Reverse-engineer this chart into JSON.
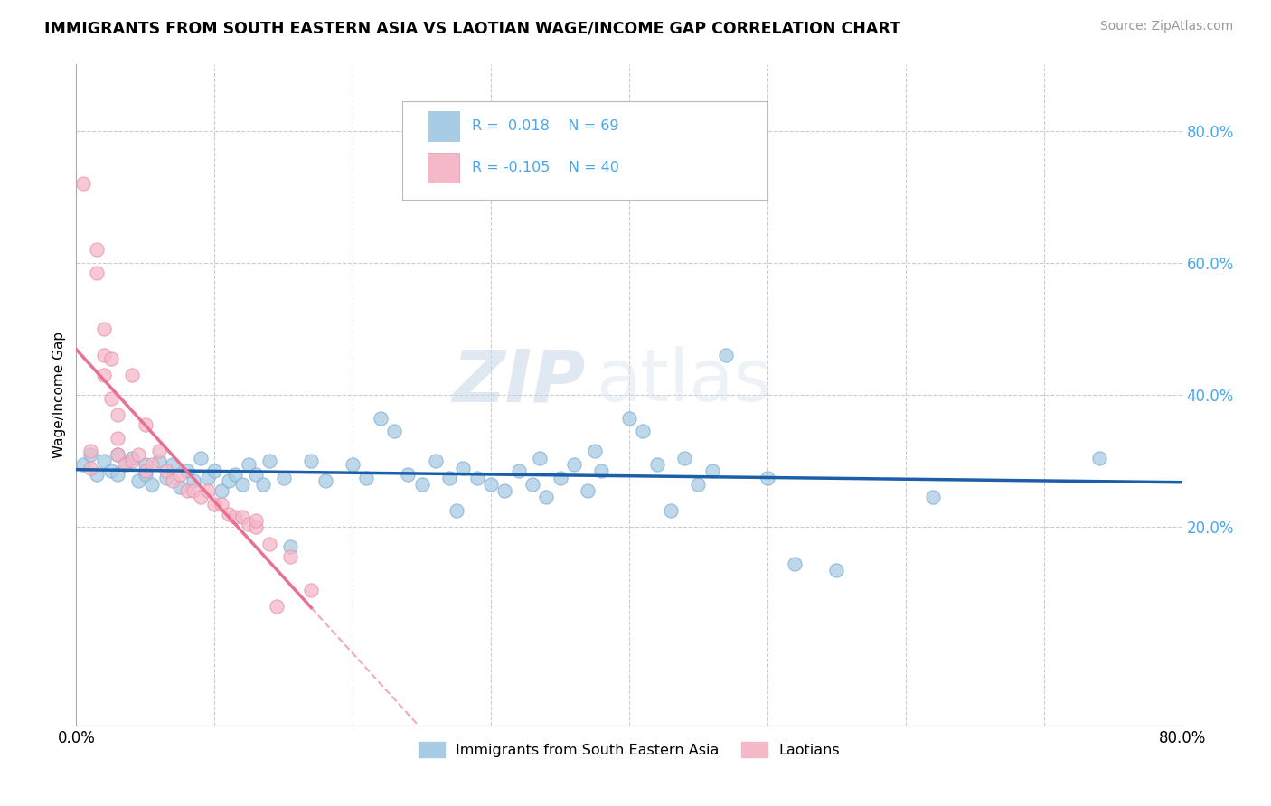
{
  "title": "IMMIGRANTS FROM SOUTH EASTERN ASIA VS LAOTIAN WAGE/INCOME GAP CORRELATION CHART",
  "source": "Source: ZipAtlas.com",
  "ylabel": "Wage/Income Gap",
  "xlim": [
    0.0,
    0.8
  ],
  "ylim": [
    -0.1,
    0.9
  ],
  "R_blue": "0.018",
  "N_blue": 69,
  "R_pink": "-0.105",
  "N_pink": 40,
  "legend_labels": [
    "Immigrants from South Eastern Asia",
    "Laotians"
  ],
  "blue_color": "#a8cce4",
  "pink_color": "#f4b8c8",
  "blue_line_color": "#1a5fa8",
  "pink_line_color": "#e87090",
  "watermark_zip": "ZIP",
  "watermark_atlas": "atlas",
  "blue_scatter_x": [
    0.005,
    0.01,
    0.015,
    0.02,
    0.025,
    0.03,
    0.03,
    0.035,
    0.04,
    0.045,
    0.05,
    0.05,
    0.055,
    0.06,
    0.065,
    0.07,
    0.075,
    0.08,
    0.085,
    0.09,
    0.095,
    0.1,
    0.105,
    0.11,
    0.115,
    0.12,
    0.125,
    0.13,
    0.135,
    0.14,
    0.15,
    0.155,
    0.17,
    0.18,
    0.2,
    0.21,
    0.22,
    0.23,
    0.24,
    0.25,
    0.26,
    0.27,
    0.275,
    0.28,
    0.29,
    0.3,
    0.31,
    0.32,
    0.33,
    0.335,
    0.34,
    0.35,
    0.36,
    0.37,
    0.375,
    0.38,
    0.4,
    0.41,
    0.42,
    0.43,
    0.44,
    0.45,
    0.46,
    0.47,
    0.5,
    0.52,
    0.55,
    0.62,
    0.74
  ],
  "blue_scatter_y": [
    0.295,
    0.31,
    0.28,
    0.3,
    0.285,
    0.31,
    0.28,
    0.295,
    0.305,
    0.27,
    0.295,
    0.28,
    0.265,
    0.3,
    0.275,
    0.295,
    0.26,
    0.285,
    0.27,
    0.305,
    0.275,
    0.285,
    0.255,
    0.27,
    0.28,
    0.265,
    0.295,
    0.28,
    0.265,
    0.3,
    0.275,
    0.17,
    0.3,
    0.27,
    0.295,
    0.275,
    0.365,
    0.345,
    0.28,
    0.265,
    0.3,
    0.275,
    0.225,
    0.29,
    0.275,
    0.265,
    0.255,
    0.285,
    0.265,
    0.305,
    0.245,
    0.275,
    0.295,
    0.255,
    0.315,
    0.285,
    0.365,
    0.345,
    0.295,
    0.225,
    0.305,
    0.265,
    0.285,
    0.46,
    0.275,
    0.145,
    0.135,
    0.245,
    0.305
  ],
  "pink_scatter_x": [
    0.005,
    0.01,
    0.01,
    0.015,
    0.015,
    0.02,
    0.02,
    0.02,
    0.025,
    0.025,
    0.03,
    0.03,
    0.03,
    0.035,
    0.04,
    0.04,
    0.045,
    0.05,
    0.05,
    0.055,
    0.06,
    0.065,
    0.07,
    0.075,
    0.08,
    0.085,
    0.09,
    0.095,
    0.1,
    0.105,
    0.11,
    0.115,
    0.12,
    0.125,
    0.13,
    0.13,
    0.14,
    0.145,
    0.155,
    0.17
  ],
  "pink_scatter_y": [
    0.72,
    0.315,
    0.29,
    0.62,
    0.585,
    0.5,
    0.46,
    0.43,
    0.455,
    0.395,
    0.37,
    0.335,
    0.31,
    0.295,
    0.43,
    0.3,
    0.31,
    0.355,
    0.285,
    0.295,
    0.315,
    0.285,
    0.27,
    0.28,
    0.255,
    0.255,
    0.245,
    0.255,
    0.235,
    0.235,
    0.22,
    0.215,
    0.215,
    0.205,
    0.2,
    0.21,
    0.175,
    0.08,
    0.155,
    0.105
  ],
  "pink_line_start_x": 0.0,
  "pink_line_start_y": 0.37,
  "pink_line_solid_end_x": 0.155,
  "pink_line_dash_end_x": 0.8,
  "blue_line_start_x": 0.0,
  "blue_line_end_x": 0.8,
  "blue_line_y_intercept": 0.285,
  "blue_line_slope": 0.003
}
